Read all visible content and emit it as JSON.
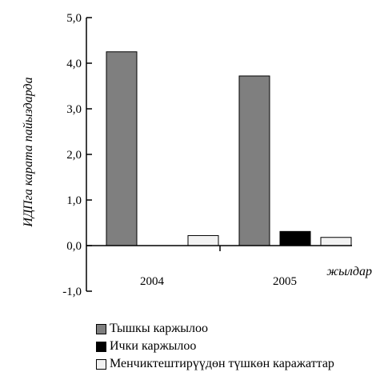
{
  "chart_data": {
    "type": "bar",
    "categories": [
      "2004",
      "2005"
    ],
    "series": [
      {
        "name": "Тышкы каржылоо",
        "values": [
          4.25,
          3.72
        ],
        "color": "#7f7f7f"
      },
      {
        "name": "Ички каржылоо",
        "values": [
          0.0,
          0.31
        ],
        "color": "#000000"
      },
      {
        "name": "Менчиктештирүүдөн түшкөн каражаттар",
        "values": [
          0.22,
          0.18
        ],
        "color": "#f2f2f2"
      }
    ],
    "ylabel": "ИДПга карата пайыздарда",
    "xlabel": "жылдар",
    "ylim": [
      -1.0,
      5.0
    ],
    "yticks": [
      "5,0",
      "4,0",
      "3,0",
      "2,0",
      "1,0",
      "0,0",
      "-1,0"
    ],
    "ytick_values": [
      5,
      4,
      3,
      2,
      1,
      0,
      -1
    ],
    "grid": false,
    "legend_position": "bottom"
  }
}
